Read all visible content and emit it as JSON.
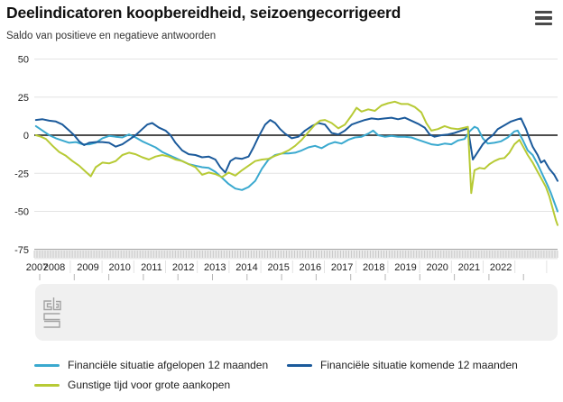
{
  "header": {
    "title": "Deelindicatoren koopbereidheid, seizoengecorrigeerd",
    "subtitle": "Saldo van positieve en negatieve antwoorden",
    "menu_icon": "hamburger-icon"
  },
  "footer": {
    "logo": "cbs-logo"
  },
  "colors": {
    "series_past": "#3aa9cf",
    "series_future": "#1b5a9b",
    "series_purchases": "#b7ca35",
    "zero_line": "#4d4d4d",
    "grid": "#e4e4e4",
    "band_bg": "#eaeaea",
    "band_tick": "#c2c2c2",
    "band_border": "#a8a8a8",
    "band_separator": "#e3e3e3",
    "panel_bg": "#f0f0f0",
    "panel_tick": "#b5b5b5",
    "logo": "#a3a3a3",
    "text": "#222222"
  },
  "chart_data": {
    "type": "line",
    "title": "Deelindicatoren koopbereidheid, seizoengecorrigeerd",
    "subtitle": "Saldo van positieve en negatieve antwoorden",
    "x_unit": "decimal_year",
    "x_domain": [
      2007.25,
      2023.0
    ],
    "ylim": [
      -75,
      50
    ],
    "yticks": [
      50,
      25,
      0,
      -25,
      -50,
      -75
    ],
    "x_tick_labels": [
      "2007",
      "2008",
      "2009",
      "2010",
      "2011",
      "2012",
      "2013",
      "2014",
      "2015",
      "2016",
      "2017",
      "2018",
      "2019",
      "2020",
      "2021",
      "2022"
    ],
    "grid": "horizontal",
    "legend_position": "bottom",
    "series": [
      {
        "name": "Financiële situatie afgelopen 12 maanden",
        "color_key": "series_past",
        "points": [
          [
            2007.3,
            6
          ],
          [
            2007.5,
            3
          ],
          [
            2007.7,
            0
          ],
          [
            2007.9,
            -2
          ],
          [
            2008.1,
            -3.5
          ],
          [
            2008.3,
            -5
          ],
          [
            2008.5,
            -4.5
          ],
          [
            2008.7,
            -6
          ],
          [
            2008.9,
            -6
          ],
          [
            2009.1,
            -5
          ],
          [
            2009.3,
            -2
          ],
          [
            2009.5,
            -0.5
          ],
          [
            2009.7,
            -1
          ],
          [
            2009.9,
            -1.5
          ],
          [
            2010.1,
            0.5
          ],
          [
            2010.3,
            -1.5
          ],
          [
            2010.5,
            -4
          ],
          [
            2010.7,
            -6
          ],
          [
            2010.9,
            -8
          ],
          [
            2011.1,
            -11
          ],
          [
            2011.3,
            -13
          ],
          [
            2011.5,
            -15
          ],
          [
            2011.7,
            -17
          ],
          [
            2011.9,
            -19
          ],
          [
            2012.1,
            -20
          ],
          [
            2012.3,
            -21
          ],
          [
            2012.5,
            -21.5
          ],
          [
            2012.7,
            -24
          ],
          [
            2012.9,
            -28
          ],
          [
            2013.1,
            -32
          ],
          [
            2013.3,
            -35
          ],
          [
            2013.5,
            -36
          ],
          [
            2013.7,
            -34
          ],
          [
            2013.9,
            -30
          ],
          [
            2014.1,
            -22
          ],
          [
            2014.3,
            -16
          ],
          [
            2014.5,
            -13
          ],
          [
            2014.7,
            -12
          ],
          [
            2014.9,
            -12
          ],
          [
            2015.1,
            -11.5
          ],
          [
            2015.3,
            -10
          ],
          [
            2015.5,
            -8
          ],
          [
            2015.7,
            -7
          ],
          [
            2015.9,
            -8.5
          ],
          [
            2016.1,
            -6
          ],
          [
            2016.3,
            -4.5
          ],
          [
            2016.5,
            -5.5
          ],
          [
            2016.7,
            -3
          ],
          [
            2016.9,
            -1.5
          ],
          [
            2017.1,
            -1
          ],
          [
            2017.3,
            1
          ],
          [
            2017.45,
            3
          ],
          [
            2017.6,
            0
          ],
          [
            2017.8,
            -1
          ],
          [
            2018,
            -0.5
          ],
          [
            2018.2,
            -1
          ],
          [
            2018.4,
            -1
          ],
          [
            2018.6,
            -1.5
          ],
          [
            2018.8,
            -3
          ],
          [
            2019,
            -4.5
          ],
          [
            2019.2,
            -6
          ],
          [
            2019.4,
            -6.5
          ],
          [
            2019.6,
            -5.5
          ],
          [
            2019.8,
            -6
          ],
          [
            2020,
            -3.5
          ],
          [
            2020.2,
            -2.5
          ],
          [
            2020.35,
            2.5
          ],
          [
            2020.5,
            5.5
          ],
          [
            2020.6,
            4.5
          ],
          [
            2020.75,
            -2
          ],
          [
            2020.9,
            -5.5
          ],
          [
            2021.1,
            -5
          ],
          [
            2021.3,
            -4
          ],
          [
            2021.5,
            -1.5
          ],
          [
            2021.7,
            2.5
          ],
          [
            2021.8,
            3
          ],
          [
            2021.95,
            -3
          ],
          [
            2022.1,
            -10
          ],
          [
            2022.25,
            -13
          ],
          [
            2022.4,
            -19
          ],
          [
            2022.55,
            -26
          ],
          [
            2022.7,
            -33
          ],
          [
            2022.8,
            -38
          ],
          [
            2022.9,
            -44
          ],
          [
            2023,
            -50
          ]
        ]
      },
      {
        "name": "Financiële situatie komende 12 maanden",
        "color_key": "series_future",
        "points": [
          [
            2007.3,
            10
          ],
          [
            2007.5,
            10.5
          ],
          [
            2007.7,
            9.5
          ],
          [
            2007.9,
            9
          ],
          [
            2008.1,
            7
          ],
          [
            2008.3,
            3
          ],
          [
            2008.45,
            0
          ],
          [
            2008.6,
            -4
          ],
          [
            2008.75,
            -6.5
          ],
          [
            2008.9,
            -5
          ],
          [
            2009.1,
            -4.5
          ],
          [
            2009.3,
            -4.5
          ],
          [
            2009.5,
            -5
          ],
          [
            2009.7,
            -7.5
          ],
          [
            2009.9,
            -6
          ],
          [
            2010.1,
            -3
          ],
          [
            2010.3,
            0
          ],
          [
            2010.5,
            4
          ],
          [
            2010.65,
            7
          ],
          [
            2010.8,
            8
          ],
          [
            2011,
            5
          ],
          [
            2011.2,
            3
          ],
          [
            2011.35,
            0
          ],
          [
            2011.5,
            -5
          ],
          [
            2011.7,
            -10
          ],
          [
            2011.9,
            -12.5
          ],
          [
            2012.1,
            -13
          ],
          [
            2012.3,
            -14.5
          ],
          [
            2012.5,
            -14
          ],
          [
            2012.7,
            -16
          ],
          [
            2012.85,
            -21
          ],
          [
            2013,
            -24.5
          ],
          [
            2013.15,
            -17
          ],
          [
            2013.3,
            -15
          ],
          [
            2013.5,
            -15.5
          ],
          [
            2013.7,
            -14
          ],
          [
            2013.85,
            -8
          ],
          [
            2014,
            -1
          ],
          [
            2014.2,
            7
          ],
          [
            2014.35,
            10
          ],
          [
            2014.5,
            8
          ],
          [
            2014.65,
            4
          ],
          [
            2014.8,
            1
          ],
          [
            2015,
            -2
          ],
          [
            2015.2,
            -1
          ],
          [
            2015.4,
            3
          ],
          [
            2015.6,
            6
          ],
          [
            2015.8,
            8
          ],
          [
            2016,
            7
          ],
          [
            2016.2,
            1.5
          ],
          [
            2016.4,
            0.5
          ],
          [
            2016.6,
            3
          ],
          [
            2016.8,
            7
          ],
          [
            2017,
            8.5
          ],
          [
            2017.2,
            10
          ],
          [
            2017.4,
            11
          ],
          [
            2017.6,
            10.5
          ],
          [
            2017.8,
            11
          ],
          [
            2018,
            11.5
          ],
          [
            2018.2,
            10.5
          ],
          [
            2018.4,
            11.5
          ],
          [
            2018.6,
            9.5
          ],
          [
            2018.8,
            7.5
          ],
          [
            2019,
            5
          ],
          [
            2019.15,
            0.5
          ],
          [
            2019.3,
            -1
          ],
          [
            2019.5,
            0
          ],
          [
            2019.7,
            0.5
          ],
          [
            2019.9,
            1.5
          ],
          [
            2020.1,
            3
          ],
          [
            2020.3,
            4.5
          ],
          [
            2020.45,
            -16
          ],
          [
            2020.6,
            -11
          ],
          [
            2020.75,
            -6
          ],
          [
            2020.9,
            -2.5
          ],
          [
            2021.05,
            0
          ],
          [
            2021.2,
            4
          ],
          [
            2021.4,
            6.5
          ],
          [
            2021.6,
            9
          ],
          [
            2021.8,
            10.5
          ],
          [
            2021.9,
            11
          ],
          [
            2022.05,
            4
          ],
          [
            2022.15,
            -2
          ],
          [
            2022.25,
            -7.5
          ],
          [
            2022.4,
            -13
          ],
          [
            2022.5,
            -18
          ],
          [
            2022.6,
            -16.5
          ],
          [
            2022.75,
            -22
          ],
          [
            2022.9,
            -26
          ],
          [
            2023,
            -30
          ]
        ]
      },
      {
        "name": "Gunstige tijd voor grote aankopen",
        "color_key": "series_purchases",
        "points": [
          [
            2007.3,
            0
          ],
          [
            2007.45,
            -1
          ],
          [
            2007.6,
            -2.5
          ],
          [
            2007.8,
            -7
          ],
          [
            2008,
            -11
          ],
          [
            2008.2,
            -13.5
          ],
          [
            2008.4,
            -17
          ],
          [
            2008.6,
            -20
          ],
          [
            2008.8,
            -24
          ],
          [
            2008.95,
            -27
          ],
          [
            2009.1,
            -21
          ],
          [
            2009.3,
            -18
          ],
          [
            2009.5,
            -18.5
          ],
          [
            2009.7,
            -17
          ],
          [
            2009.9,
            -13
          ],
          [
            2010.1,
            -11.5
          ],
          [
            2010.3,
            -12.5
          ],
          [
            2010.5,
            -14.5
          ],
          [
            2010.7,
            -16
          ],
          [
            2010.9,
            -14
          ],
          [
            2011.1,
            -13
          ],
          [
            2011.3,
            -14
          ],
          [
            2011.5,
            -16
          ],
          [
            2011.7,
            -17
          ],
          [
            2011.9,
            -19
          ],
          [
            2012.1,
            -21
          ],
          [
            2012.3,
            -26
          ],
          [
            2012.5,
            -24.5
          ],
          [
            2012.7,
            -25.5
          ],
          [
            2012.9,
            -27.5
          ],
          [
            2013.1,
            -24.5
          ],
          [
            2013.3,
            -26.5
          ],
          [
            2013.5,
            -23
          ],
          [
            2013.7,
            -20
          ],
          [
            2013.9,
            -17
          ],
          [
            2014.1,
            -16
          ],
          [
            2014.3,
            -15.5
          ],
          [
            2014.5,
            -13.5
          ],
          [
            2014.7,
            -12
          ],
          [
            2014.9,
            -10
          ],
          [
            2015.1,
            -7
          ],
          [
            2015.3,
            -3
          ],
          [
            2015.5,
            2
          ],
          [
            2015.7,
            7
          ],
          [
            2015.85,
            9.5
          ],
          [
            2016,
            10
          ],
          [
            2016.2,
            8
          ],
          [
            2016.4,
            4.5
          ],
          [
            2016.6,
            7
          ],
          [
            2016.8,
            13
          ],
          [
            2016.95,
            18
          ],
          [
            2017.1,
            15.5
          ],
          [
            2017.3,
            17
          ],
          [
            2017.5,
            16
          ],
          [
            2017.7,
            19.5
          ],
          [
            2017.9,
            21
          ],
          [
            2018.1,
            22
          ],
          [
            2018.3,
            20.5
          ],
          [
            2018.5,
            20.5
          ],
          [
            2018.7,
            18.5
          ],
          [
            2018.9,
            15
          ],
          [
            2019.05,
            8
          ],
          [
            2019.2,
            3
          ],
          [
            2019.4,
            4
          ],
          [
            2019.6,
            6
          ],
          [
            2019.8,
            4.5
          ],
          [
            2020,
            4
          ],
          [
            2020.2,
            5
          ],
          [
            2020.3,
            5.5
          ],
          [
            2020.4,
            -38
          ],
          [
            2020.5,
            -23
          ],
          [
            2020.65,
            -21.5
          ],
          [
            2020.8,
            -22
          ],
          [
            2020.95,
            -19
          ],
          [
            2021.1,
            -17
          ],
          [
            2021.25,
            -15.5
          ],
          [
            2021.4,
            -15
          ],
          [
            2021.55,
            -11.5
          ],
          [
            2021.7,
            -6
          ],
          [
            2021.85,
            -3
          ],
          [
            2022,
            -9
          ],
          [
            2022.1,
            -13
          ],
          [
            2022.25,
            -18
          ],
          [
            2022.4,
            -24
          ],
          [
            2022.5,
            -28
          ],
          [
            2022.65,
            -34
          ],
          [
            2022.75,
            -40
          ],
          [
            2022.85,
            -48
          ],
          [
            2022.95,
            -56
          ],
          [
            2023,
            -59
          ]
        ]
      }
    ]
  }
}
